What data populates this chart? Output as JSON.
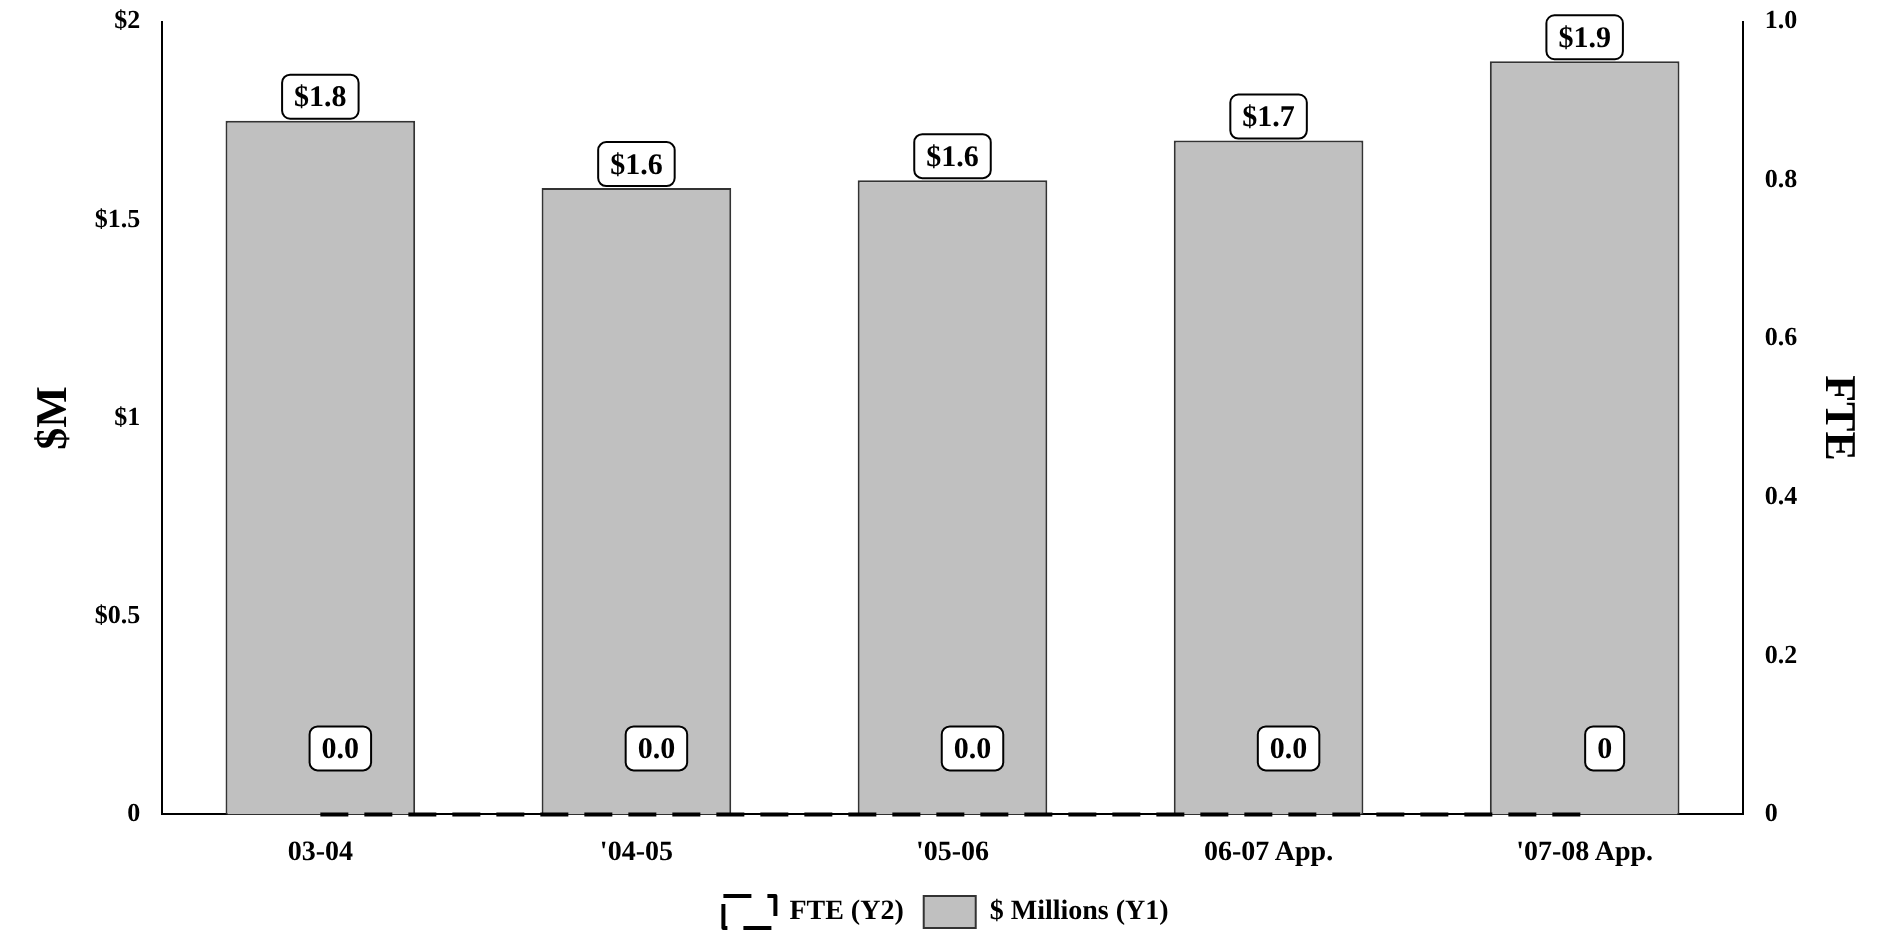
{
  "chart_data": {
    "type": "bar",
    "ylabel": "$M",
    "y2label": "FTE",
    "categories": [
      "03-04",
      "'04-05",
      "'05-06",
      "06-07 App.",
      "'07-08 App."
    ],
    "series": [
      {
        "name": "$ Millions (Y1)",
        "color": "#c0c0c0",
        "values": [
          1.75,
          1.58,
          1.6,
          1.7,
          1.9
        ],
        "value_labels": [
          "$1.8",
          "$1.6",
          "$1.6",
          "$1.7",
          "$1.9"
        ]
      },
      {
        "name": "FTE (Y2)",
        "type": "line",
        "axis": "y2",
        "color": "#000000",
        "line_style": "dashed",
        "values": [
          0,
          0,
          0,
          0,
          0
        ],
        "value_labels": [
          "0.0",
          "0.0",
          "0.0",
          "0.0",
          "0"
        ]
      }
    ],
    "ylim": [
      0,
      2
    ],
    "yticks": [
      0,
      {
        "value": 0.5,
        "label": "$0.5"
      },
      {
        "value": 1,
        "label": "$1"
      },
      {
        "value": 1.5,
        "label": "$1.5"
      },
      {
        "value": 2,
        "label": "$2"
      }
    ],
    "y2lim": [
      0,
      1
    ],
    "y2ticks": [
      0,
      0.2,
      0.4,
      0.6,
      0.8,
      {
        "value": 1,
        "label": "1.0"
      }
    ],
    "grid": false,
    "legend": "bottom"
  }
}
